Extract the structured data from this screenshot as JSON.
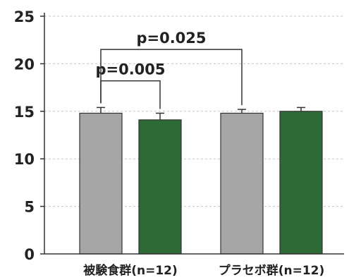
{
  "chart_data": {
    "type": "bar",
    "title": "",
    "xlabel": "",
    "ylabel": "",
    "ylim": [
      0,
      25
    ],
    "yticks": [
      0,
      5,
      10,
      15,
      20,
      25
    ],
    "grid": true,
    "colors": {
      "gray": "#a6a6a6",
      "green": "#2d6a35",
      "outline": "#333333",
      "grid": "#c8c8c8"
    },
    "groups": [
      {
        "label": "被験食群(n=12)",
        "bars": [
          {
            "value": 14.8,
            "error": 0.6,
            "color": "gray"
          },
          {
            "value": 14.1,
            "error": 0.7,
            "color": "green"
          }
        ]
      },
      {
        "label": "プラセボ群(n=12)",
        "bars": [
          {
            "value": 14.8,
            "error": 0.4,
            "color": "gray"
          },
          {
            "value": 15.0,
            "error": 0.4,
            "color": "green"
          }
        ]
      }
    ],
    "annotations": [
      {
        "text": "p=0.005",
        "from": [
          0,
          0
        ],
        "to": [
          0,
          1
        ],
        "level": 18.2
      },
      {
        "text": "p=0.025",
        "from": [
          0,
          0
        ],
        "to": [
          1,
          0
        ],
        "level": 21.5
      }
    ]
  }
}
